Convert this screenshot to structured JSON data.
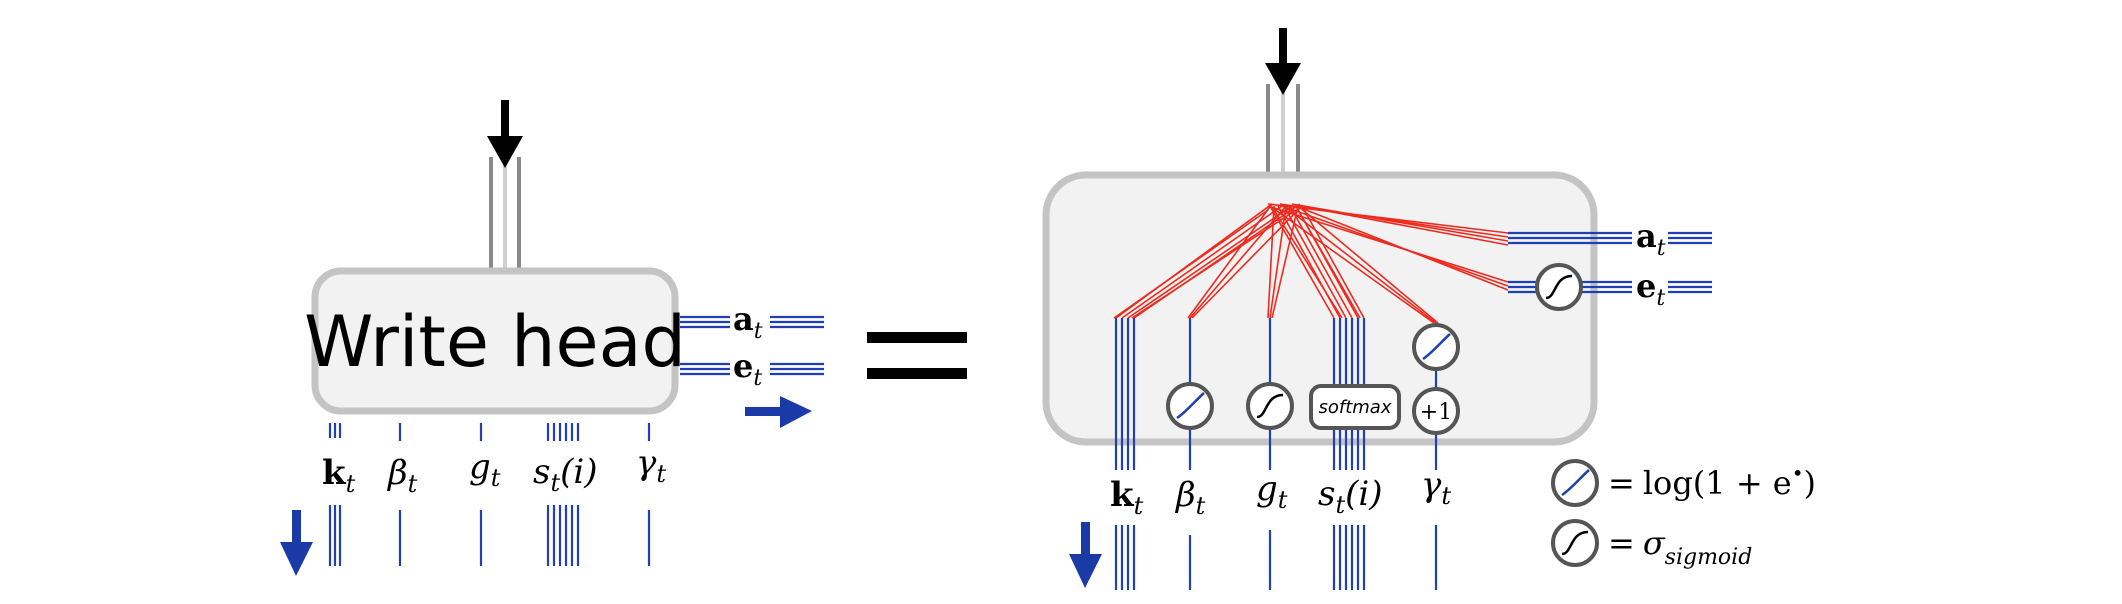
{
  "left_head": {
    "title": "Write head",
    "outputs": [
      {
        "sym": "a",
        "sub": "t"
      },
      {
        "sym": "e",
        "sub": "t"
      }
    ],
    "params": [
      {
        "sym": "k",
        "sub": "t",
        "suffix": ""
      },
      {
        "sym": "β",
        "sub": "t",
        "suffix": ""
      },
      {
        "sym": "g",
        "sub": "t",
        "suffix": ""
      },
      {
        "sym": "s",
        "sub": "t",
        "suffix": "(i)"
      },
      {
        "sym": "γ",
        "sub": "t",
        "suffix": ""
      }
    ]
  },
  "equals": "=",
  "right_head": {
    "outputs": [
      {
        "sym": "a",
        "sub": "t"
      },
      {
        "sym": "e",
        "sub": "t"
      }
    ],
    "params": [
      {
        "sym": "k",
        "sub": "t",
        "suffix": ""
      },
      {
        "sym": "β",
        "sub": "t",
        "suffix": ""
      },
      {
        "sym": "g",
        "sub": "t",
        "suffix": ""
      },
      {
        "sym": "s",
        "sub": "t",
        "suffix": "(i)"
      },
      {
        "sym": "γ",
        "sub": "t",
        "suffix": ""
      }
    ],
    "softmax_label": "softmax",
    "plus_one_label": "+1"
  },
  "legend": {
    "softplus": {
      "eq": "=",
      "text": "log(1 + e",
      "sup": "•",
      "close": ")"
    },
    "sigmoid": {
      "eq": "=",
      "sym": "σ",
      "sub": "sigmoid"
    }
  },
  "colors": {
    "wire_blue": "#1f3fb5",
    "arrow_blue": "#1a3aa8",
    "fan_red": "#ee2a1e",
    "box_fill": "#f2f2f2",
    "box_stroke": "#c4c4c4",
    "node_stroke": "#555555"
  }
}
